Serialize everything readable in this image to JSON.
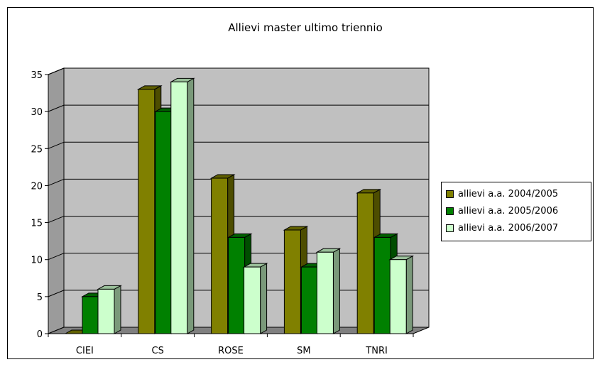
{
  "chart_data": {
    "type": "bar",
    "title": "Allievi master ultimo triennio",
    "categories": [
      "CIEI",
      "CS",
      "ROSE",
      "SM",
      "TNRI"
    ],
    "series": [
      {
        "name": "allievi a.a. 2004/2005",
        "values": [
          0,
          33,
          21,
          14,
          19
        ],
        "color": "#808000"
      },
      {
        "name": "allievi a.a. 2005/2006",
        "values": [
          5,
          30,
          13,
          9,
          13
        ],
        "color": "#008000"
      },
      {
        "name": "allievi a.a. 2006/2007",
        "values": [
          6,
          34,
          9,
          11,
          10
        ],
        "color": "#CCFFCC"
      }
    ],
    "ylim": [
      0,
      35
    ],
    "yticks": [
      0,
      5,
      10,
      15,
      20,
      25,
      30,
      35
    ],
    "grid": true,
    "legend": "right",
    "plot_background": "#C0C0C0"
  }
}
